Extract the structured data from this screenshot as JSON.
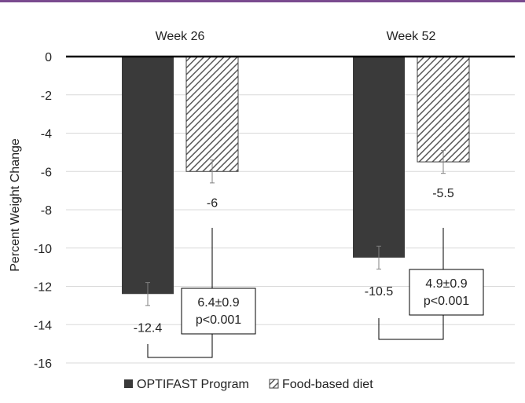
{
  "colors": {
    "top_rule": "#7a4b8f",
    "optifast_fill": "#3a3a3a",
    "gridline": "#d9d9d9",
    "axis_line": "#000000",
    "text": "#222222",
    "hatch": "#595959"
  },
  "chart_data": {
    "type": "bar",
    "categories": [
      "Week 26",
      "Week 52"
    ],
    "series": [
      {
        "name": "OPTIFAST Program",
        "values": [
          -12.4,
          -10.5
        ],
        "value_labels": [
          "-12.4",
          "-10.5"
        ],
        "error": [
          0.6,
          0.6
        ],
        "pattern": "solid"
      },
      {
        "name": "Food-based diet",
        "values": [
          -6,
          -5.5
        ],
        "value_labels": [
          "-6",
          "-5.5"
        ],
        "error": [
          0.6,
          0.6
        ],
        "pattern": "hatched"
      }
    ],
    "ylabel": "Percent Weight Change",
    "ylim": [
      -16,
      0
    ],
    "yticks": [
      "0",
      "-2",
      "-4",
      "-6",
      "-8",
      "-10",
      "-12",
      "-14",
      "-16"
    ],
    "grid": true,
    "legend_position": "bottom",
    "annotations": [
      {
        "category": "Week 26",
        "line1": "6.4±0.9",
        "line2": "p<0.001"
      },
      {
        "category": "Week 52",
        "line1": "4.9±0.9",
        "line2": "p<0.001"
      }
    ]
  }
}
